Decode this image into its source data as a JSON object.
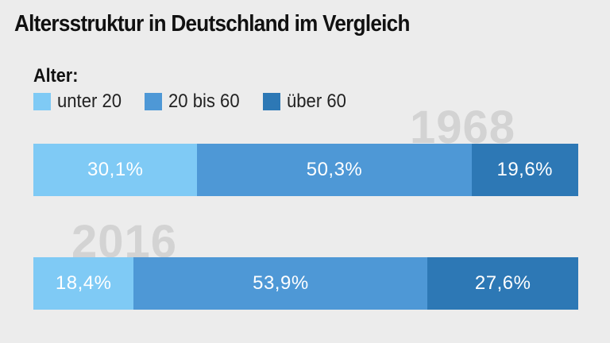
{
  "title": "Altersstruktur in Deutschland im Vergleich",
  "legend_title": "Alter:",
  "colors": {
    "unter_20": "#7fcaf5",
    "20_bis_60": "#4e98d6",
    "ueber_60": "#2d78b5"
  },
  "chart_data": {
    "type": "bar",
    "orientation": "horizontal",
    "stacked": true,
    "title": "Altersstruktur in Deutschland im Vergleich",
    "legend_title": "Alter:",
    "categories": [
      "1968",
      "2016"
    ],
    "series": [
      {
        "name": "unter 20",
        "values": [
          30.1,
          18.4
        ],
        "labels": [
          "30,1%",
          "18,4%"
        ]
      },
      {
        "name": "20 bis 60",
        "values": [
          50.3,
          53.9
        ],
        "labels": [
          "50,3%",
          "53,9%"
        ]
      },
      {
        "name": "über 60",
        "values": [
          19.6,
          27.6
        ],
        "labels": [
          "19,6%",
          "27,6%"
        ]
      }
    ],
    "xlim": [
      0,
      100
    ],
    "legend_position": "top-left",
    "grid": false
  }
}
